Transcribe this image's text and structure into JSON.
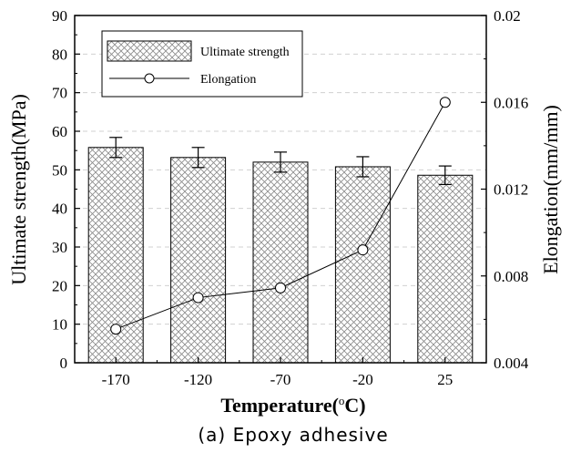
{
  "chart_data": {
    "type": "bar",
    "xlabel": "Temperature(",
    "xlabel_unit": "o",
    "xlabel_tail": "C)",
    "ylabel": "Ultimate strength(MPa)",
    "y2label": "Elongation(mm/mm)",
    "categories": [
      "-170",
      "-120",
      "-70",
      "-20",
      "25"
    ],
    "ylim": [
      0,
      90
    ],
    "yticks": [
      "0",
      "10",
      "20",
      "30",
      "40",
      "50",
      "60",
      "70",
      "80",
      "90"
    ],
    "y2lim": [
      0.004,
      0.02
    ],
    "y2ticks": [
      "0.004",
      "0.008",
      "0.012",
      "0.016",
      "0.02"
    ],
    "grid": "dashed horizontal",
    "legend_position": "top-left",
    "series": [
      {
        "name": "Ultimate strength",
        "type": "bar",
        "axis": "left",
        "values": [
          55.8,
          53.2,
          52.0,
          50.8,
          48.6
        ],
        "error": [
          2.6,
          2.6,
          2.6,
          2.6,
          2.4
        ],
        "fill": "crosshatch",
        "color": "#000000"
      },
      {
        "name": "Elongation",
        "type": "line",
        "axis": "right",
        "marker": "open-circle",
        "values": [
          0.00555,
          0.007,
          0.00745,
          0.0092,
          0.016
        ],
        "color": "#000000"
      }
    ]
  },
  "caption": "(a) Epoxy adhesive"
}
